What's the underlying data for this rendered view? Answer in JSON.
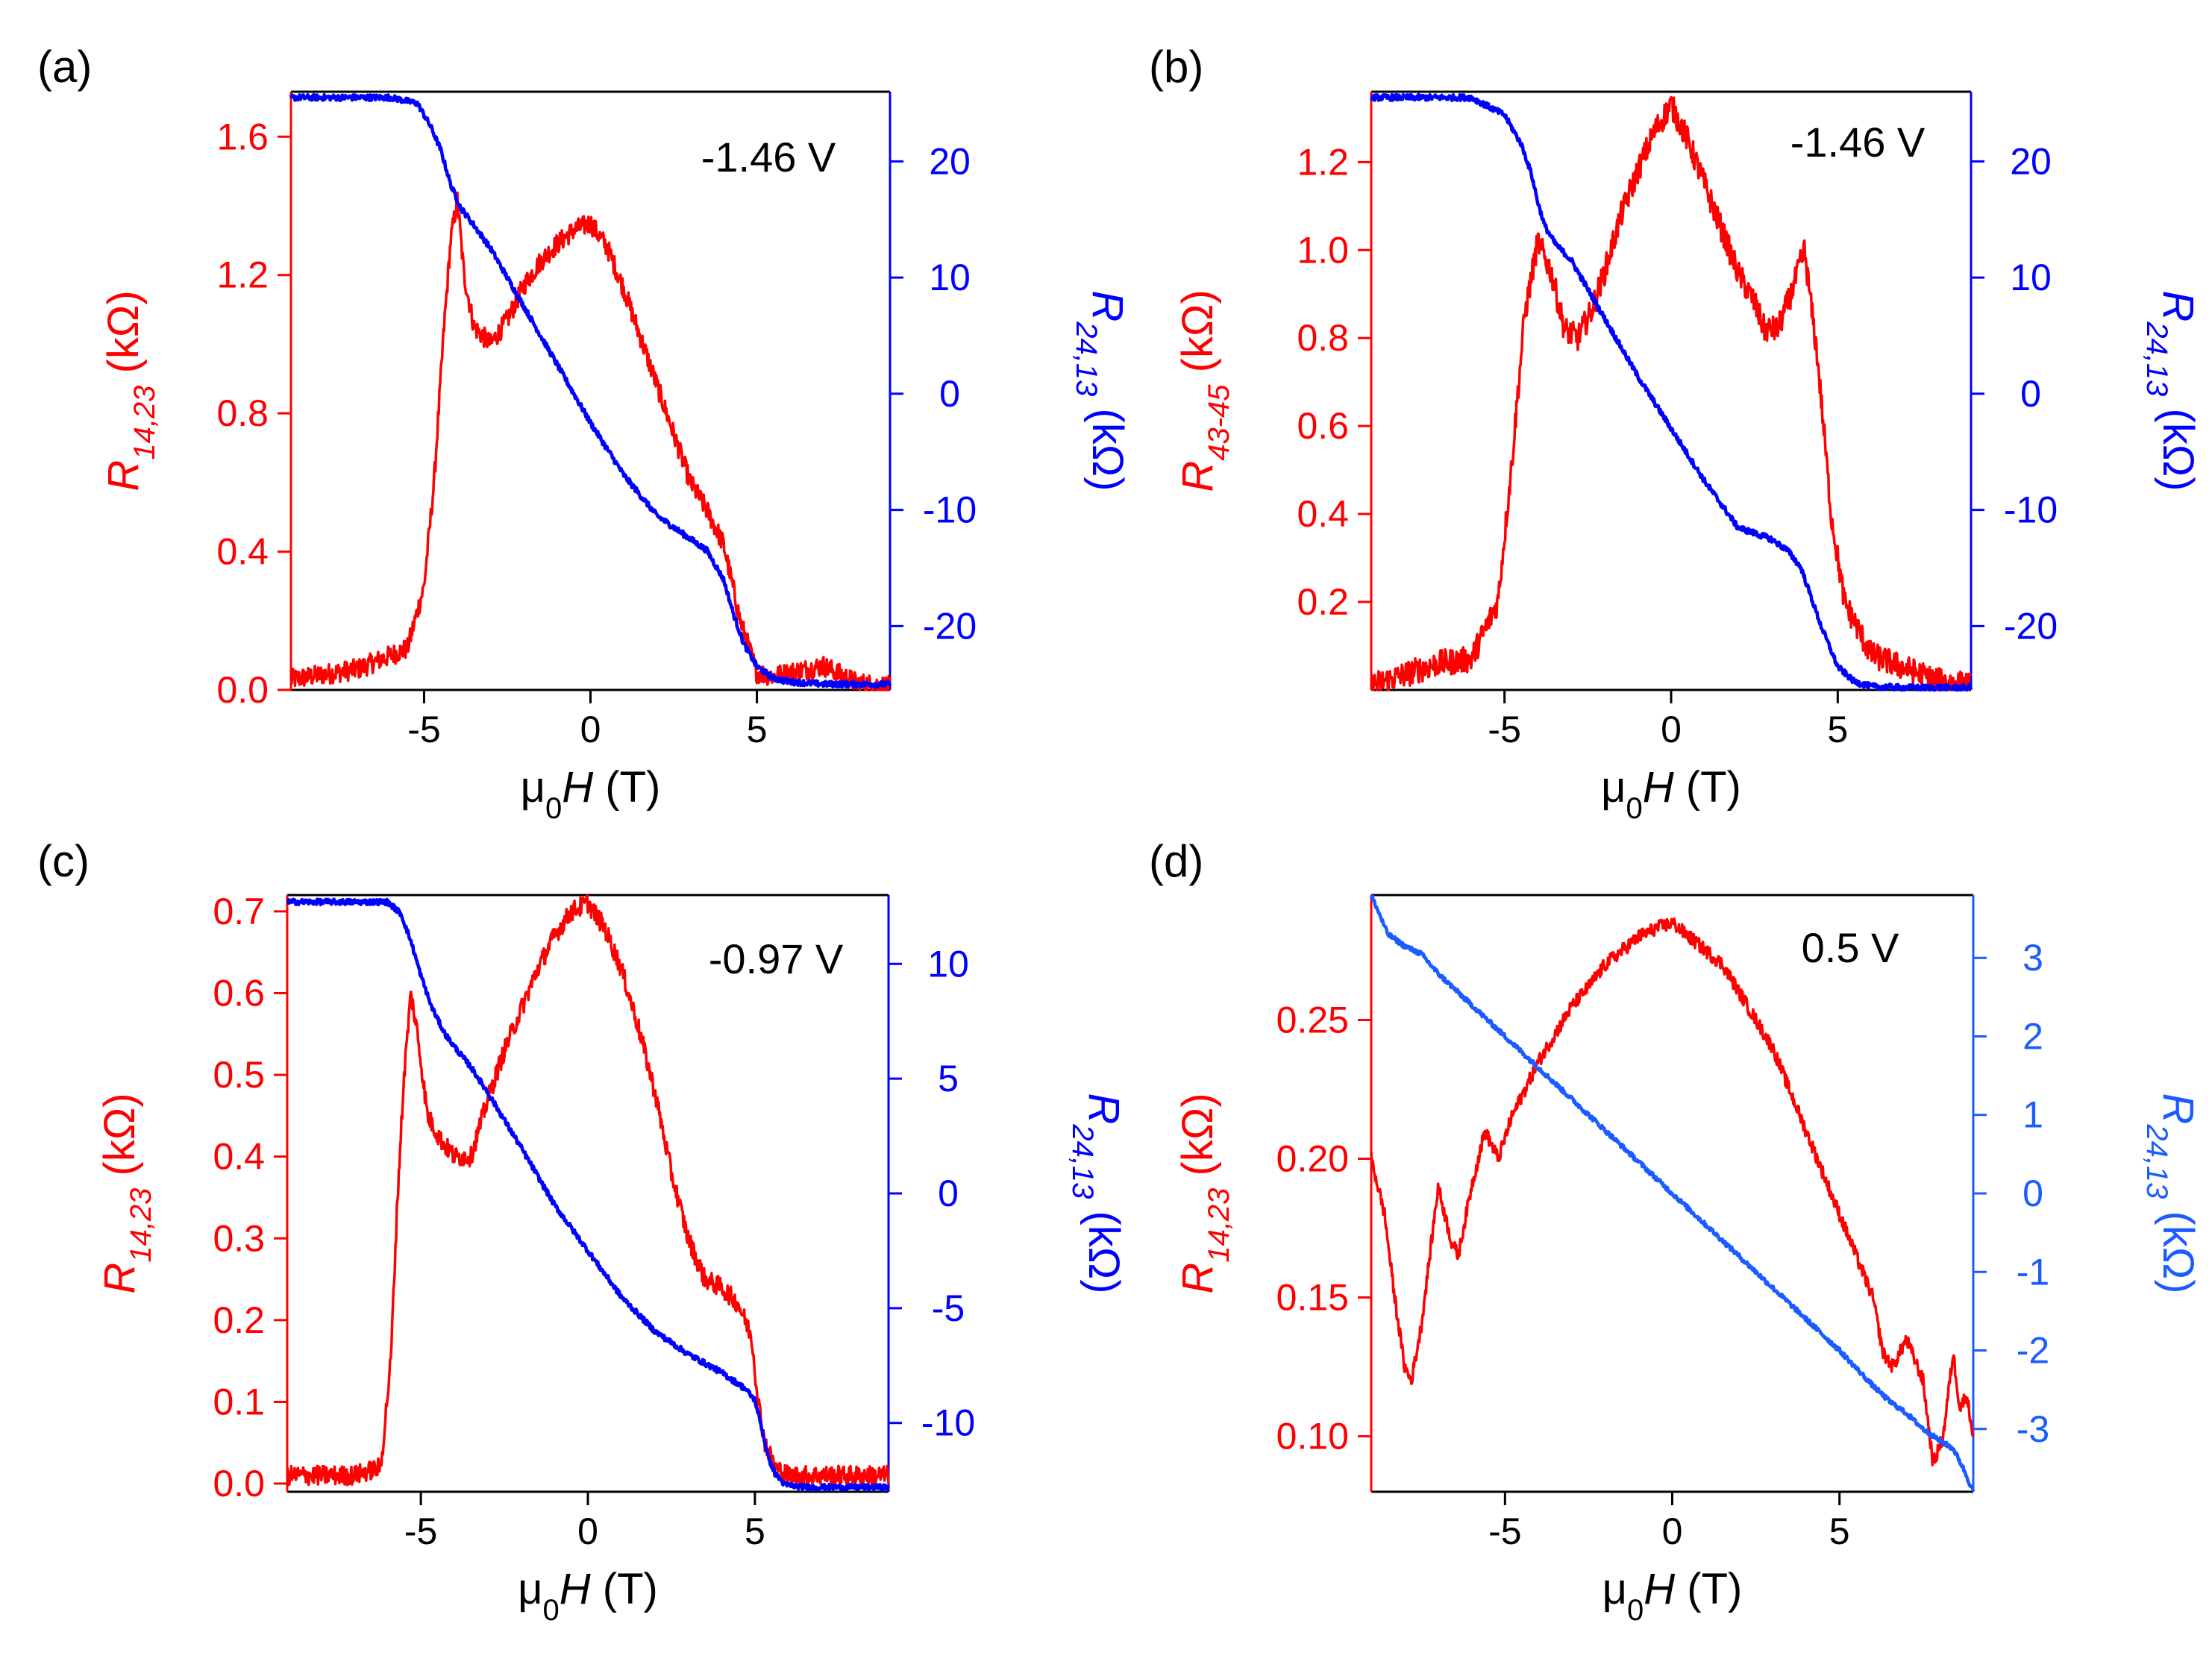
{
  "colors": {
    "red": "#ff0000",
    "blue_dark": "#0000ff",
    "blue_light": "#1a5cff",
    "axis": "#000000"
  },
  "chart_data": [
    {
      "panel": "(a)",
      "type": "line",
      "annotation": "-1.46 V",
      "xlabel": {
        "pre": "μ",
        "sub": "0",
        "italic": "H",
        "post": " (T)"
      },
      "ylabel_left": {
        "main": "R",
        "sub": "14,23",
        "post": " (kΩ)"
      },
      "ylabel_right": {
        "main": "R",
        "sub": "24,13",
        "post": " (kΩ)"
      },
      "xlim": [
        -9,
        9
      ],
      "ylim_left": [
        0,
        1.73
      ],
      "ylim_right": [
        -25.5,
        26
      ],
      "xticks": [
        -5,
        0,
        5
      ],
      "xtick_labels": [
        "-5",
        "0",
        "5"
      ],
      "yticks_left": [
        0.0,
        0.4,
        0.8,
        1.2,
        1.6
      ],
      "ytick_labels_left": [
        "0.0",
        "0.4",
        "0.8",
        "1.2",
        "1.6"
      ],
      "yticks_right": [
        -20,
        -10,
        0,
        10,
        20
      ],
      "ytick_labels_right": [
        "-20",
        "-10",
        "0",
        "10",
        "20"
      ],
      "right_color": "#0000ff",
      "series": [
        {
          "axis": "left",
          "color": "#ff0000",
          "noise": 0.03,
          "x": [
            -9,
            -7,
            -6,
            -5.5,
            -5,
            -4.7,
            -4.4,
            -4.2,
            -4.0,
            -3.8,
            -3.5,
            -3.0,
            -2.5,
            -2.0,
            -1.5,
            -1.0,
            -0.5,
            0,
            0.5,
            1.0,
            1.5,
            2.0,
            2.5,
            3.0,
            3.5,
            4.0,
            4.5,
            5.0,
            5.5,
            6.0,
            7.0,
            8.0,
            9.0
          ],
          "y": [
            0.03,
            0.06,
            0.1,
            0.12,
            0.3,
            0.6,
            1.05,
            1.3,
            1.42,
            1.2,
            1.05,
            1.0,
            1.07,
            1.17,
            1.24,
            1.29,
            1.33,
            1.35,
            1.28,
            1.16,
            1.02,
            0.88,
            0.74,
            0.6,
            0.52,
            0.42,
            0.2,
            0.05,
            0.04,
            0.05,
            0.07,
            0.02,
            0.01
          ]
        },
        {
          "axis": "right",
          "color": "#0000ff",
          "noise": 0.25,
          "x": [
            -9,
            -6,
            -5.2,
            -4.8,
            -4.5,
            -4.2,
            -3.9,
            -3.5,
            -3.0,
            -2.0,
            -1.0,
            0,
            1.0,
            2.0,
            3.0,
            3.5,
            4.0,
            4.3,
            4.6,
            5.0,
            5.5,
            6.0,
            7.0,
            9.0
          ],
          "y": [
            25.5,
            25.5,
            25.0,
            23.0,
            21.0,
            18.0,
            16.0,
            14.5,
            12.5,
            7.5,
            2.5,
            -2.5,
            -7.0,
            -10.5,
            -12.5,
            -13.5,
            -16.0,
            -19.0,
            -21.5,
            -23.5,
            -24.5,
            -24.8,
            -25.0,
            -25.0
          ]
        }
      ]
    },
    {
      "panel": "(b)",
      "type": "line",
      "annotation": "-1.46 V",
      "xlabel": {
        "pre": "μ",
        "sub": "0",
        "italic": "H",
        "post": " (T)"
      },
      "ylabel_left": {
        "main": "R",
        "sub": "43-45",
        "post": " (kΩ)"
      },
      "ylabel_right": {
        "main": "R",
        "sub": "24,13",
        "post": " (kΩ)"
      },
      "xlim": [
        -9,
        9
      ],
      "ylim_left": [
        0.0,
        1.36
      ],
      "ylim_right": [
        -25.5,
        26
      ],
      "xticks": [
        -5,
        0,
        5
      ],
      "xtick_labels": [
        "-5",
        "0",
        "5"
      ],
      "yticks_left": [
        0.2,
        0.4,
        0.6,
        0.8,
        1.0,
        1.2
      ],
      "ytick_labels_left": [
        "0.2",
        "0.4",
        "0.6",
        "0.8",
        "1.0",
        "1.2"
      ],
      "yticks_right": [
        -20,
        -10,
        0,
        10,
        20
      ],
      "ytick_labels_right": [
        "-20",
        "-10",
        "0",
        "10",
        "20"
      ],
      "right_color": "#0000ff",
      "series": [
        {
          "axis": "left",
          "color": "#ff0000",
          "noise": 0.03,
          "x": [
            -9,
            -7,
            -6,
            -5.2,
            -4.8,
            -4.4,
            -4.0,
            -3.6,
            -3.2,
            -2.8,
            -2.4,
            -2.0,
            -1.5,
            -1.0,
            -0.5,
            0,
            0.5,
            1.0,
            1.5,
            2.0,
            2.5,
            2.8,
            3.2,
            3.6,
            4.0,
            4.4,
            4.8,
            5.2,
            6.0,
            7.0,
            8.0,
            9.0
          ],
          "y": [
            0.01,
            0.06,
            0.07,
            0.2,
            0.5,
            0.85,
            1.02,
            0.95,
            0.82,
            0.8,
            0.86,
            0.95,
            1.08,
            1.18,
            1.27,
            1.33,
            1.25,
            1.15,
            1.05,
            0.95,
            0.88,
            0.82,
            0.82,
            0.9,
            1.0,
            0.75,
            0.4,
            0.2,
            0.08,
            0.05,
            0.02,
            0.01
          ]
        },
        {
          "axis": "right",
          "color": "#0000ff",
          "noise": 0.25,
          "x": [
            -9,
            -6,
            -5.0,
            -4.5,
            -4.2,
            -4.0,
            -3.8,
            -3.5,
            -3.0,
            -2.5,
            -2.0,
            -1.0,
            0,
            1.0,
            2.0,
            3.0,
            3.5,
            3.9,
            4.2,
            4.5,
            5.0,
            5.5,
            6.0,
            7.0,
            9.0
          ],
          "y": [
            25.5,
            25.5,
            24.0,
            21.5,
            19.0,
            16.5,
            14.5,
            13.0,
            11.5,
            9.0,
            6.5,
            1.5,
            -3.0,
            -7.5,
            -11.5,
            -12.5,
            -13.5,
            -15.0,
            -17.5,
            -20.0,
            -23.5,
            -24.8,
            -25.2,
            -25.3,
            -25.3
          ]
        }
      ]
    },
    {
      "panel": "(c)",
      "type": "line",
      "annotation": "-0.97 V",
      "xlabel": {
        "pre": "μ",
        "sub": "0",
        "italic": "H",
        "post": " (T)"
      },
      "ylabel_left": {
        "main": "R",
        "sub": "14,23",
        "post": " (kΩ)"
      },
      "ylabel_right": {
        "main": "R",
        "sub": "24,13",
        "post": " (kΩ)"
      },
      "xlim": [
        -9,
        9
      ],
      "ylim_left": [
        -0.01,
        0.72
      ],
      "ylim_right": [
        -13,
        13
      ],
      "xticks": [
        -5,
        0,
        5
      ],
      "xtick_labels": [
        "-5",
        "0",
        "5"
      ],
      "yticks_left": [
        0.0,
        0.1,
        0.2,
        0.3,
        0.4,
        0.5,
        0.6,
        0.7
      ],
      "ytick_labels_left": [
        "0.0",
        "0.1",
        "0.2",
        "0.3",
        "0.4",
        "0.5",
        "0.6",
        "0.7"
      ],
      "yticks_right": [
        -10,
        -5,
        0,
        5,
        10
      ],
      "ytick_labels_right": [
        "-10",
        "-5",
        "0",
        "5",
        "10"
      ],
      "right_color": "#0000ff",
      "series": [
        {
          "axis": "left",
          "color": "#ff0000",
          "noise": 0.012,
          "x": [
            -9,
            -7,
            -6.2,
            -5.9,
            -5.7,
            -5.5,
            -5.3,
            -5.1,
            -4.8,
            -4.4,
            -4.0,
            -3.5,
            -3.0,
            -2.5,
            -2.0,
            -1.5,
            -1.0,
            -0.5,
            0,
            0.5,
            1.0,
            1.5,
            2.0,
            2.5,
            3.0,
            3.5,
            4.0,
            4.5,
            4.9,
            5.1,
            5.3,
            5.6,
            6.0,
            7.0,
            9.0
          ],
          "y": [
            0.01,
            0.01,
            0.02,
            0.15,
            0.35,
            0.5,
            0.6,
            0.55,
            0.45,
            0.42,
            0.4,
            0.4,
            0.47,
            0.53,
            0.58,
            0.63,
            0.67,
            0.7,
            0.71,
            0.68,
            0.63,
            0.56,
            0.48,
            0.38,
            0.3,
            0.25,
            0.24,
            0.22,
            0.18,
            0.1,
            0.05,
            0.02,
            0.01,
            0.01,
            0.01
          ]
        },
        {
          "axis": "right",
          "color": "#0000ff",
          "noise": 0.12,
          "x": [
            -9,
            -6.0,
            -5.6,
            -5.3,
            -5.0,
            -4.7,
            -4.3,
            -4.0,
            -3.5,
            -3.0,
            -2.0,
            -1.0,
            0,
            1.0,
            2.0,
            3.0,
            4.0,
            4.7,
            5.0,
            5.2,
            5.4,
            5.6,
            5.9,
            6.5,
            9.0
          ],
          "y": [
            12.7,
            12.7,
            12.2,
            11.0,
            9.5,
            8.2,
            7.0,
            6.4,
            5.5,
            4.4,
            2.0,
            -0.5,
            -2.5,
            -4.5,
            -6.0,
            -7.0,
            -7.8,
            -8.5,
            -9.0,
            -10.2,
            -11.5,
            -12.2,
            -12.7,
            -12.8,
            -12.8
          ]
        }
      ]
    },
    {
      "panel": "(d)",
      "type": "line",
      "annotation": "0.5 V",
      "xlabel": {
        "pre": "μ",
        "sub": "0",
        "italic": "H",
        "post": " (T)"
      },
      "ylabel_left": {
        "main": "R",
        "sub": "14,23",
        "post": " (kΩ)"
      },
      "ylabel_right": {
        "main": "R",
        "sub": "24,13",
        "post": " (kΩ)"
      },
      "xlim": [
        -9,
        9
      ],
      "ylim_left": [
        0.08,
        0.295
      ],
      "ylim_right": [
        -3.8,
        3.8
      ],
      "xticks": [
        -5,
        0,
        5
      ],
      "xtick_labels": [
        "-5",
        "0",
        "5"
      ],
      "yticks_left": [
        0.1,
        0.15,
        0.2,
        0.25
      ],
      "ytick_labels_left": [
        "0.10",
        "0.15",
        "0.20",
        "0.25"
      ],
      "yticks_right": [
        -3,
        -2,
        -1,
        0,
        1,
        2,
        3
      ],
      "ytick_labels_right": [
        "-3",
        "-2",
        "-1",
        "0",
        "1",
        "2",
        "3"
      ],
      "right_color": "#1a5cff",
      "series": [
        {
          "axis": "left",
          "color": "#ff0000",
          "noise": 0.0025,
          "x": [
            -9,
            -8.6,
            -8.3,
            -8.0,
            -7.8,
            -7.5,
            -7.0,
            -6.6,
            -6.4,
            -6.0,
            -5.6,
            -5.2,
            -4.8,
            -4.4,
            -4.0,
            -3.5,
            -3.0,
            -2.5,
            -2.0,
            -1.5,
            -1.0,
            -0.5,
            0,
            0.5,
            1.0,
            1.5,
            2.0,
            2.5,
            3.0,
            3.5,
            4.0,
            4.5,
            5.0,
            5.5,
            6.0,
            6.3,
            6.6,
            7.0,
            7.5,
            7.8,
            8.1,
            8.4,
            8.6,
            8.8,
            9.0
          ],
          "y": [
            0.2,
            0.18,
            0.15,
            0.125,
            0.12,
            0.14,
            0.19,
            0.17,
            0.165,
            0.19,
            0.21,
            0.2,
            0.215,
            0.225,
            0.235,
            0.245,
            0.255,
            0.262,
            0.27,
            0.275,
            0.28,
            0.283,
            0.285,
            0.28,
            0.275,
            0.27,
            0.26,
            0.25,
            0.24,
            0.225,
            0.21,
            0.195,
            0.18,
            0.165,
            0.15,
            0.13,
            0.125,
            0.135,
            0.12,
            0.09,
            0.1,
            0.13,
            0.11,
            0.115,
            0.1
          ]
        },
        {
          "axis": "right",
          "color": "#1a5cff",
          "noise": 0.03,
          "x": [
            -9,
            -8.5,
            -8.0,
            -7.5,
            -7.0,
            -6.0,
            -5.0,
            -4.0,
            -3.0,
            -2.0,
            -1.0,
            0,
            1.0,
            2.0,
            3.0,
            4.0,
            5.0,
            6.0,
            6.5,
            7.0,
            7.5,
            8.0,
            8.4,
            8.7,
            9.0
          ],
          "y": [
            3.8,
            3.3,
            3.15,
            3.05,
            2.8,
            2.4,
            2.0,
            1.6,
            1.2,
            0.8,
            0.4,
            0.0,
            -0.4,
            -0.8,
            -1.2,
            -1.6,
            -2.0,
            -2.45,
            -2.65,
            -2.8,
            -3.0,
            -3.15,
            -3.25,
            -3.5,
            -3.8
          ]
        }
      ]
    }
  ]
}
